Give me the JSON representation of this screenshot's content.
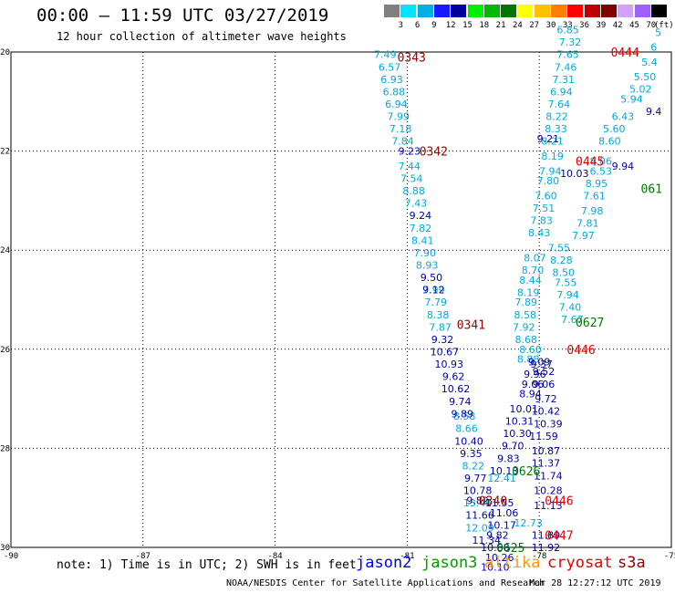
{
  "header": {
    "title": "00:00 – 11:59 UTC 03/27/2019",
    "subtitle": "12 hour collection of altimeter wave heights"
  },
  "colorbar": {
    "labels": [
      "3",
      "6",
      "9",
      "12",
      "15",
      "18",
      "21",
      "24",
      "27",
      "30",
      "33",
      "36",
      "39",
      "42",
      "45",
      "70"
    ],
    "unit": "(ft)",
    "colors": [
      "#808080",
      "#00e5ff",
      "#00b0e0",
      "#1a1aff",
      "#00009a",
      "#00ee00",
      "#00b800",
      "#007800",
      "#ffff00",
      "#ffc000",
      "#ff8000",
      "#ff0000",
      "#c00000",
      "#800000",
      "#d2a0ff",
      "#a060ff",
      "#000000"
    ]
  },
  "footer": {
    "note": "note: 1) Time is in UTC; 2) SWH is in feet",
    "satellites": [
      {
        "name": "jason2",
        "color": "#0000ee"
      },
      {
        "name": "jason3",
        "color": "#00a000"
      },
      {
        "name": "altika",
        "color": "#ff9900"
      },
      {
        "name": "cryosat",
        "color": "#ee0000"
      },
      {
        "name": "s3a",
        "color": "#990000"
      }
    ],
    "credit": "NOAA/NESDIS Center for Satellite Applications and Research",
    "timestamp": "Mar 28 12:27:12 UTC 2019"
  },
  "chart_data": {
    "type": "scatter",
    "xlim": [
      -90,
      -75
    ],
    "ylim": [
      -30,
      -20
    ],
    "x_ticks": [
      "-90",
      "-87",
      "-84",
      "-81",
      "-78",
      "-75"
    ],
    "y_ticks": [
      "-20",
      "-22",
      "-24",
      "-26",
      "-28",
      "-30"
    ],
    "grid": true,
    "series": [
      {
        "color": "#00aadd",
        "points": [
          [
            -81.5,
            -20.05,
            "7.49"
          ],
          [
            -81.4,
            -20.3,
            "6.57"
          ],
          [
            -81.35,
            -20.55,
            "6.93"
          ],
          [
            -81.3,
            -20.8,
            "6.88"
          ],
          [
            -81.25,
            -21.05,
            "6.94"
          ],
          [
            -81.2,
            -21.3,
            "7.99"
          ],
          [
            -81.15,
            -21.55,
            "7.18"
          ],
          [
            -81.1,
            -21.8,
            "7.84"
          ],
          [
            -80.95,
            -22.3,
            "7.44"
          ],
          [
            -80.9,
            -22.55,
            "7.54"
          ],
          [
            -80.85,
            -22.8,
            "8.88"
          ],
          [
            -80.8,
            -23.05,
            "7.43"
          ],
          [
            -80.7,
            -23.55,
            "7.82"
          ],
          [
            -80.65,
            -23.8,
            "8.41"
          ],
          [
            -80.6,
            -24.05,
            "7.90"
          ],
          [
            -80.55,
            -24.3,
            "8.93"
          ],
          [
            -80.4,
            -24.8,
            "7.99"
          ],
          [
            -80.35,
            -25.05,
            "7.79"
          ],
          [
            -80.3,
            -25.3,
            "8.38"
          ],
          [
            -80.25,
            -25.55,
            "7.87"
          ],
          [
            -79.7,
            -27.35,
            "8.58"
          ],
          [
            -79.65,
            -27.6,
            "8.66"
          ],
          [
            -79.5,
            -28.35,
            "8.22"
          ],
          [
            -78.85,
            -28.6,
            "12.41"
          ],
          [
            -79.4,
            -29.1,
            "13.46"
          ],
          [
            -79.35,
            -29.6,
            "12.09"
          ],
          [
            -78.25,
            -29.5,
            "12.73"
          ],
          [
            -78.35,
            -25.55,
            "7.92"
          ],
          [
            -78.32,
            -25.3,
            "8.58"
          ],
          [
            -78.3,
            -25.05,
            "7.89"
          ],
          [
            -78.25,
            -24.85,
            "8.19"
          ],
          [
            -78.2,
            -24.6,
            "8.44"
          ],
          [
            -78.15,
            -24.4,
            "8.70"
          ],
          [
            -78.1,
            -24.15,
            "8.07"
          ],
          [
            -78.0,
            -23.65,
            "8.43"
          ],
          [
            -77.95,
            -23.4,
            "7.83"
          ],
          [
            -77.9,
            -23.15,
            "7.51"
          ],
          [
            -77.85,
            -22.9,
            "7.60"
          ],
          [
            -77.8,
            -22.6,
            "7.80"
          ],
          [
            -77.75,
            -22.4,
            "7.94"
          ],
          [
            -77.7,
            -22.1,
            "8.19"
          ],
          [
            -77.7,
            -21.8,
            "8.21"
          ],
          [
            -77.62,
            -21.55,
            "8.33"
          ],
          [
            -77.6,
            -21.3,
            "8.22"
          ],
          [
            -77.55,
            -21.05,
            "7.64"
          ],
          [
            -77.5,
            -20.8,
            "6.94"
          ],
          [
            -77.45,
            -20.55,
            "7.31"
          ],
          [
            -77.4,
            -20.3,
            "7.46"
          ],
          [
            -77.35,
            -20.05,
            "7.65"
          ],
          [
            -77.3,
            -19.8,
            "7.32"
          ],
          [
            -77.35,
            -19.55,
            "6.85"
          ],
          [
            -77.55,
            -23.95,
            "7.55"
          ],
          [
            -77.5,
            -24.2,
            "8.28"
          ],
          [
            -77.45,
            -24.45,
            "8.50"
          ],
          [
            -77.4,
            -24.65,
            "7.55"
          ],
          [
            -77.35,
            -24.9,
            "7.94"
          ],
          [
            -77.3,
            -25.15,
            "7.40"
          ],
          [
            -77.25,
            -25.4,
            "7.67"
          ],
          [
            -77.0,
            -23.7,
            "7.97"
          ],
          [
            -76.9,
            -23.45,
            "7.81"
          ],
          [
            -76.8,
            -23.2,
            "7.98"
          ],
          [
            -76.75,
            -22.9,
            "7.61"
          ],
          [
            -76.7,
            -22.65,
            "8.95"
          ],
          [
            -76.6,
            -22.4,
            "6.53"
          ],
          [
            -76.4,
            -21.8,
            "8.60"
          ],
          [
            -76.3,
            -21.55,
            "5.60"
          ],
          [
            -76.1,
            -21.3,
            "6.43"
          ],
          [
            -75.9,
            -20.95,
            "5.94"
          ],
          [
            -75.7,
            -20.75,
            "5.02"
          ],
          [
            -75.6,
            -20.5,
            "5.50"
          ],
          [
            -75.5,
            -20.2,
            "5.4"
          ],
          [
            -75.4,
            -19.9,
            "6"
          ],
          [
            -75.3,
            -19.6,
            "5"
          ],
          [
            -78.25,
            -26.2,
            "8.88"
          ],
          [
            -78.2,
            -26.0,
            "8.60"
          ],
          [
            -78.3,
            -25.8,
            "8.68"
          ],
          [
            -76.6,
            -22.2,
            "8.06"
          ]
        ]
      },
      {
        "color": "#0000aa",
        "points": [
          [
            -80.95,
            -22.0,
            "9.23"
          ],
          [
            -80.7,
            -23.3,
            "9.24"
          ],
          [
            -80.45,
            -24.55,
            "9.50"
          ],
          [
            -80.4,
            -24.8,
            "9.12"
          ],
          [
            -80.2,
            -25.8,
            "9.32"
          ],
          [
            -80.15,
            -26.05,
            "10.67"
          ],
          [
            -80.05,
            -26.3,
            "10.93"
          ],
          [
            -79.95,
            -26.55,
            "9.62"
          ],
          [
            -79.9,
            -26.8,
            "10.62"
          ],
          [
            -79.8,
            -27.05,
            "9.74"
          ],
          [
            -79.75,
            -27.3,
            "9.89"
          ],
          [
            -79.6,
            -27.85,
            "10.40"
          ],
          [
            -79.55,
            -28.1,
            "9.35"
          ],
          [
            -79.45,
            -28.6,
            "9.77"
          ],
          [
            -79.4,
            -28.85,
            "10.78"
          ],
          [
            -79.35,
            -29.35,
            "11.66"
          ],
          [
            -79.2,
            -29.85,
            "11.34"
          ],
          [
            -78.9,
            -29.1,
            "11.55"
          ],
          [
            -78.8,
            -29.3,
            "11.06"
          ],
          [
            -78.85,
            -29.55,
            "10.17"
          ],
          [
            -78.95,
            -29.75,
            "9.82"
          ],
          [
            -79.0,
            -30.0,
            "10.68"
          ],
          [
            -78.9,
            -30.2,
            "10.26"
          ],
          [
            -79.0,
            -30.4,
            "10.10"
          ],
          [
            -78.8,
            -28.45,
            "10.13"
          ],
          [
            -78.7,
            -28.2,
            "9.83"
          ],
          [
            -78.6,
            -27.95,
            "9.70"
          ],
          [
            -78.5,
            -27.7,
            "10.30"
          ],
          [
            -78.45,
            -27.45,
            "10.31"
          ],
          [
            -78.35,
            -27.2,
            "10.01"
          ],
          [
            -78.2,
            -26.9,
            "8.94"
          ],
          [
            -78.15,
            -26.7,
            "9.06"
          ],
          [
            -78.1,
            -26.5,
            "9.96"
          ],
          [
            -78.0,
            -26.25,
            "9.09"
          ],
          [
            -77.95,
            -26.3,
            "9.37"
          ],
          [
            -77.9,
            -26.45,
            "9.52"
          ],
          [
            -77.9,
            -26.7,
            "9.06"
          ],
          [
            -77.85,
            -27.0,
            "9.72"
          ],
          [
            -77.85,
            -27.25,
            "10.42"
          ],
          [
            -77.8,
            -27.5,
            "10.39"
          ],
          [
            -77.9,
            -27.75,
            "11.59"
          ],
          [
            -77.85,
            -28.05,
            "10.87"
          ],
          [
            -77.85,
            -28.3,
            "11.37"
          ],
          [
            -77.8,
            -28.55,
            "11.74"
          ],
          [
            -77.8,
            -28.85,
            "10.28"
          ],
          [
            -77.8,
            -29.15,
            "11.13"
          ],
          [
            -77.85,
            -29.75,
            "11.89"
          ],
          [
            -77.85,
            -30.0,
            "11.92"
          ],
          [
            -77.8,
            -21.75,
            "9.21"
          ],
          [
            -77.2,
            -22.45,
            "10.03"
          ],
          [
            -79.4,
            -29.05,
            "9.82"
          ],
          [
            -76.1,
            -22.3,
            "9.94"
          ],
          [
            -75.4,
            -21.2,
            "9.4"
          ]
        ]
      }
    ],
    "pass_labels": [
      {
        "text": "0343",
        "x": -80.9,
        "y": -20.1,
        "color": "#990000"
      },
      {
        "text": "0342",
        "x": -80.4,
        "y": -22.0,
        "color": "#990000"
      },
      {
        "text": "0341",
        "x": -79.55,
        "y": -25.5,
        "color": "#990000"
      },
      {
        "text": "0340",
        "x": -79.05,
        "y": -29.05,
        "color": "#990000"
      },
      {
        "text": "0444",
        "x": -76.05,
        "y": -20.0,
        "color": "#dd0000"
      },
      {
        "text": "0445",
        "x": -76.85,
        "y": -22.2,
        "color": "#dd0000"
      },
      {
        "text": "0446",
        "x": -77.05,
        "y": -26.0,
        "color": "#dd0000"
      },
      {
        "text": "0446",
        "x": -77.55,
        "y": -29.05,
        "color": "#dd0000"
      },
      {
        "text": "0447",
        "x": -77.55,
        "y": -29.75,
        "color": "#dd0000"
      },
      {
        "text": "0626",
        "x": -78.3,
        "y": -28.45,
        "color": "#007700"
      },
      {
        "text": "0625",
        "x": -78.65,
        "y": -30.0,
        "color": "#007700"
      },
      {
        "text": "0627",
        "x": -76.85,
        "y": -25.45,
        "color": "#007700"
      },
      {
        "text": "061",
        "x": -75.45,
        "y": -22.75,
        "color": "#007700"
      }
    ]
  }
}
